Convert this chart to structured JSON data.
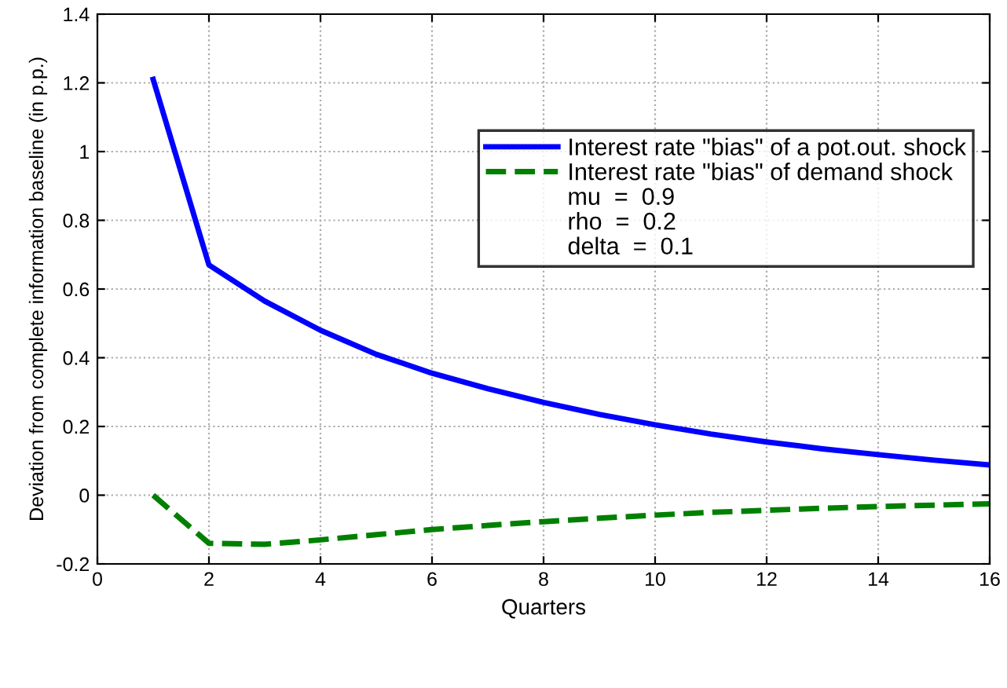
{
  "chart_data": {
    "type": "line",
    "xlabel": "Quarters",
    "ylabel": "Deviation from complete information baseline (in p.p.)",
    "x": [
      1,
      2,
      3,
      4,
      5,
      6,
      7,
      8,
      9,
      10,
      11,
      12,
      13,
      14,
      15,
      16
    ],
    "series": [
      {
        "name": "Interest rate \"bias\" of a pot.out. shock",
        "color": "#0000ff",
        "line_style": "solid",
        "values": [
          1.21,
          0.67,
          0.565,
          0.48,
          0.41,
          0.355,
          0.31,
          0.27,
          0.235,
          0.205,
          0.178,
          0.155,
          0.135,
          0.118,
          0.102,
          0.088
        ]
      },
      {
        "name": "Interest rate \"bias\" of demand shock",
        "color": "#008000",
        "line_style": "dashed",
        "values": [
          0.0,
          -0.14,
          -0.143,
          -0.13,
          -0.115,
          -0.1,
          -0.088,
          -0.077,
          -0.067,
          -0.058,
          -0.05,
          -0.044,
          -0.038,
          -0.033,
          -0.029,
          -0.025
        ]
      }
    ],
    "annotations": [
      "mu  =  0.9",
      "rho  =  0.2",
      "delta  =  0.1"
    ],
    "xlim": [
      0,
      16
    ],
    "ylim": [
      -0.2,
      1.4
    ],
    "xticks": [
      0,
      2,
      4,
      6,
      8,
      10,
      12,
      14,
      16
    ],
    "yticks": [
      -0.2,
      0,
      0.2,
      0.4,
      0.6,
      0.8,
      1,
      1.2,
      1.4
    ],
    "grid": true,
    "legend": "top right",
    "marker": "none"
  }
}
